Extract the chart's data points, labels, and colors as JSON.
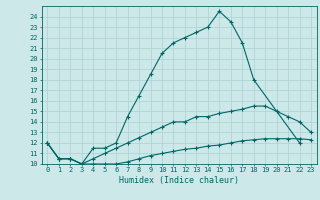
{
  "xlabel": "Humidex (Indice chaleur)",
  "xlim": [
    -0.5,
    23.5
  ],
  "ylim": [
    10,
    25
  ],
  "yticks": [
    10,
    11,
    12,
    13,
    14,
    15,
    16,
    17,
    18,
    19,
    20,
    21,
    22,
    23,
    24
  ],
  "xticks": [
    0,
    1,
    2,
    3,
    4,
    5,
    6,
    7,
    8,
    9,
    10,
    11,
    12,
    13,
    14,
    15,
    16,
    17,
    18,
    19,
    20,
    21,
    22,
    23
  ],
  "bg_color": "#cde8e8",
  "grid_color": "#b0d4d4",
  "line_color": "#006666",
  "curve1_x": [
    0,
    1,
    2,
    3,
    4,
    5,
    6,
    7,
    8,
    9,
    10,
    11,
    12,
    13,
    14,
    15,
    16,
    17,
    18,
    22
  ],
  "curve1_y": [
    12,
    10.5,
    10.5,
    10,
    11.5,
    11.5,
    12,
    14.5,
    16.5,
    18.5,
    20.5,
    21.5,
    22,
    22.5,
    23,
    24.5,
    23.5,
    21.5,
    18,
    12
  ],
  "curve2_x": [
    0,
    1,
    2,
    3,
    4,
    5,
    6,
    7,
    8,
    9,
    10,
    11,
    12,
    13,
    14,
    15,
    16,
    17,
    18,
    19,
    20,
    21,
    22,
    23
  ],
  "curve2_y": [
    12,
    10.5,
    10.5,
    10,
    10.5,
    11,
    11.5,
    12,
    12.5,
    13,
    13.5,
    14,
    14,
    14.5,
    14.5,
    14.8,
    15,
    15.2,
    15.5,
    15.5,
    15,
    14.5,
    14,
    13
  ],
  "curve3_x": [
    0,
    1,
    2,
    3,
    4,
    5,
    6,
    7,
    8,
    9,
    10,
    11,
    12,
    13,
    14,
    15,
    16,
    17,
    18,
    19,
    20,
    21,
    22,
    23
  ],
  "curve3_y": [
    12,
    10.5,
    10.5,
    10,
    10,
    10,
    10,
    10.2,
    10.5,
    10.8,
    11,
    11.2,
    11.4,
    11.5,
    11.7,
    11.8,
    12,
    12.2,
    12.3,
    12.4,
    12.4,
    12.4,
    12.4,
    12.3
  ]
}
